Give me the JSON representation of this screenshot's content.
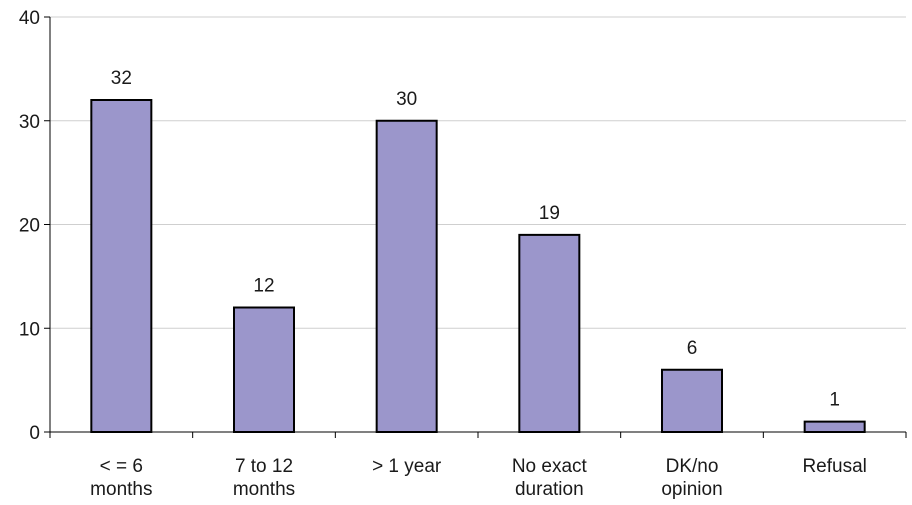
{
  "chart_data": {
    "type": "bar",
    "categories": [
      [
        "< = 6",
        "months"
      ],
      [
        "7 to 12",
        "months"
      ],
      [
        "> 1 year"
      ],
      [
        "No exact",
        "duration"
      ],
      [
        "DK/no",
        "opinion"
      ],
      [
        "Refusal"
      ]
    ],
    "values": [
      32,
      12,
      30,
      19,
      6,
      1
    ],
    "value_labels": [
      "32",
      "12",
      "30",
      "19",
      "6",
      "1"
    ],
    "yticks": [
      0,
      10,
      20,
      30,
      40
    ],
    "ytick_labels": [
      "0",
      "10",
      "20",
      "30",
      "40"
    ],
    "ylim": [
      0,
      40
    ],
    "title": "",
    "xlabel": "",
    "ylabel": "",
    "grid": true,
    "legend": "none",
    "bar_color": "#9b96cb",
    "bar_edge_color": "#000000",
    "grid_color": "#cfcfcf"
  }
}
